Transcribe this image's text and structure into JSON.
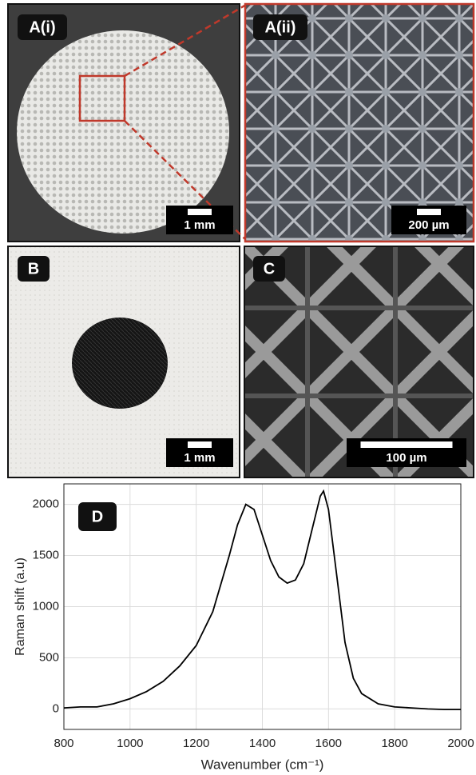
{
  "panels": [
    {
      "label": "A(i)",
      "scale_bar": "1 mm"
    },
    {
      "label": "A(ii)",
      "scale_bar": "200 µm"
    },
    {
      "label": "B",
      "scale_bar": "1 mm"
    },
    {
      "label": "C",
      "scale_bar": "100 µm"
    }
  ],
  "chart_data": {
    "type": "line",
    "panel_label": "D",
    "x_label": "Wavenumber (cm⁻¹)",
    "y_label": "Raman shift (a.u)",
    "x": [
      800,
      850,
      900,
      950,
      1000,
      1050,
      1100,
      1150,
      1200,
      1250,
      1300,
      1325,
      1350,
      1375,
      1400,
      1425,
      1450,
      1475,
      1500,
      1525,
      1550,
      1575,
      1585,
      1600,
      1625,
      1650,
      1675,
      1700,
      1750,
      1800,
      1850,
      1900,
      1950,
      2000
    ],
    "y": [
      10,
      20,
      20,
      50,
      100,
      170,
      270,
      420,
      620,
      950,
      1500,
      1800,
      2000,
      1950,
      1700,
      1450,
      1290,
      1230,
      1260,
      1420,
      1750,
      2080,
      2130,
      1950,
      1300,
      650,
      300,
      150,
      50,
      20,
      10,
      0,
      -5,
      -5
    ],
    "color": "#000000",
    "xlim": [
      800,
      2000
    ],
    "ylim": [
      -200,
      2200
    ],
    "xticks": [
      800,
      1000,
      1200,
      1400,
      1600,
      1800,
      2000
    ],
    "yticks": [
      0,
      500,
      1000,
      1500,
      2000
    ],
    "grid": true
  }
}
